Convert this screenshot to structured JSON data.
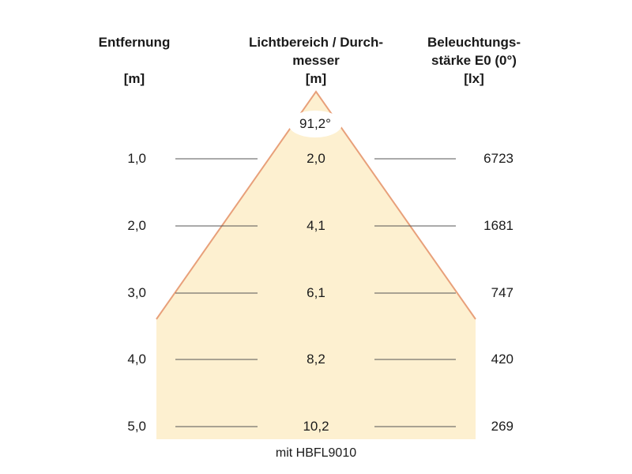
{
  "headers": {
    "distance": {
      "line1": "Entfernung",
      "unit": "[m]"
    },
    "diameter": {
      "line1": "Lichtbereich / Durch-",
      "line2": "messer",
      "unit": "[m]"
    },
    "illuminance": {
      "line1": "Beleuchtungs-",
      "line2": "stärke E0 (0°)",
      "unit": "[lx]"
    }
  },
  "beam_angle": "91,2°",
  "rows": [
    {
      "distance": "1,0",
      "diameter": "2,0",
      "illuminance": "6723"
    },
    {
      "distance": "2,0",
      "diameter": "4,1",
      "illuminance": "1681"
    },
    {
      "distance": "3,0",
      "diameter": "6,1",
      "illuminance": "747"
    },
    {
      "distance": "4,0",
      "diameter": "8,2",
      "illuminance": "420"
    },
    {
      "distance": "5,0",
      "diameter": "10,2",
      "illuminance": "269"
    }
  ],
  "caption": "mit HBFL9010",
  "colors": {
    "beam_fill": "#fdf0d0",
    "beam_edge": "#e8a07a",
    "line": "#555555"
  }
}
